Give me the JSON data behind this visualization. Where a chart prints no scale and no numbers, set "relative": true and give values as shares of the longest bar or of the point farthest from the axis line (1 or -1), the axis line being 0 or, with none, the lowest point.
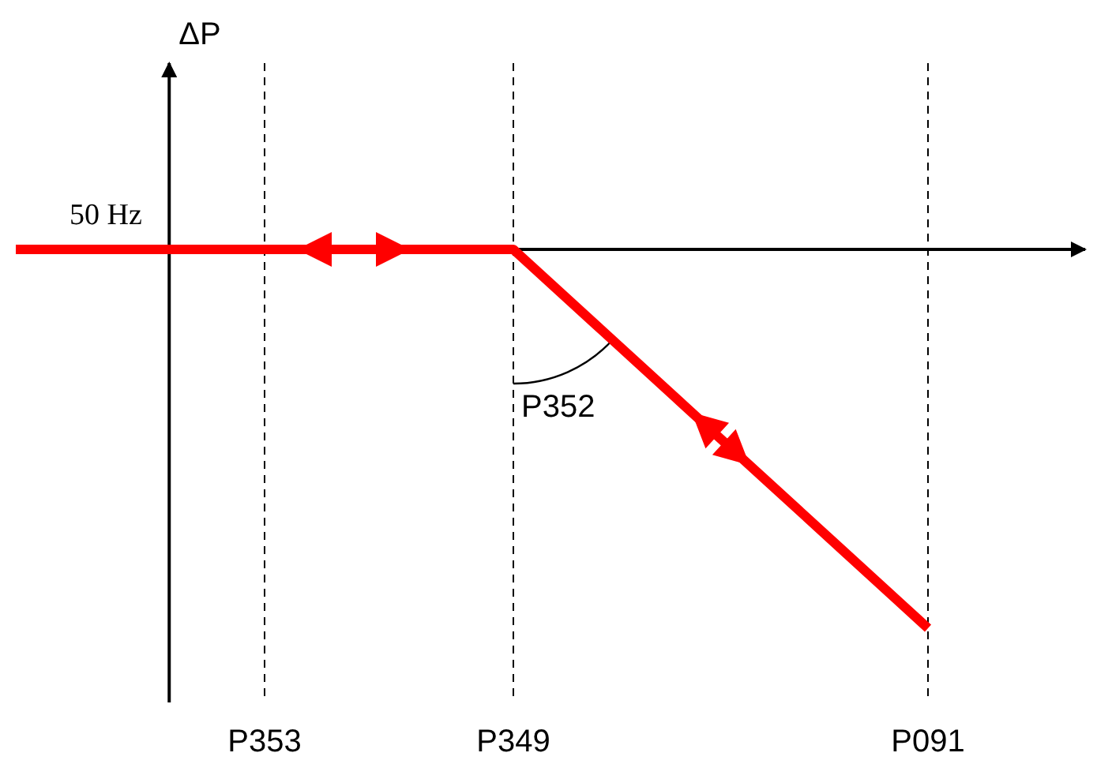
{
  "chart_data": {
    "type": "line",
    "relative": true,
    "categories": [
      null,
      null,
      null,
      "P353",
      null,
      null,
      "P349",
      null,
      null,
      null,
      null,
      "P091",
      null
    ],
    "series": [
      {
        "color": "#ff0000",
        "values": [
          0,
          0,
          0,
          0,
          0,
          0,
          0,
          -0.2,
          -0.4,
          -0.6,
          -0.8,
          -1,
          null
        ]
      }
    ],
    "ref_lines": [
      {
        "axis": "x",
        "value": "P353",
        "line_style": "dashed"
      },
      {
        "axis": "x",
        "value": "P349",
        "line_style": "dashed"
      },
      {
        "axis": "x",
        "value": "P091",
        "line_style": "dashed"
      }
    ],
    "annotations": [
      "50 Hz",
      "P352",
      "ΔP"
    ]
  }
}
